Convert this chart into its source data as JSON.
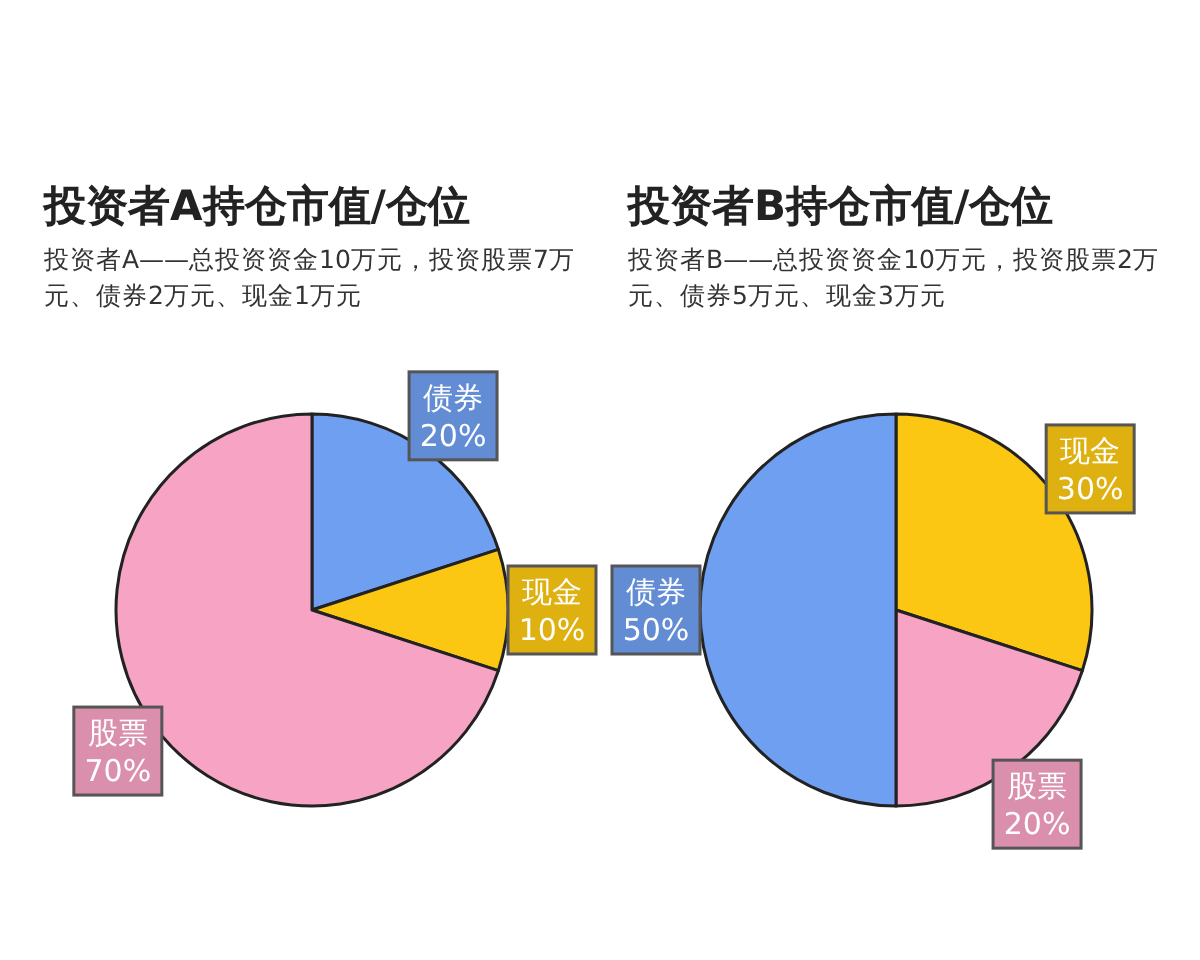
{
  "chart_data": [
    {
      "type": "pie",
      "title": "投资者A持仓市值/仓位",
      "subtitle": "投资者A——总投资资金10万元，投资股票7万元、债券2万元、现金1万元",
      "categories": [
        "债券",
        "现金",
        "股票"
      ],
      "values": [
        20,
        10,
        70
      ],
      "value_labels": [
        "20%",
        "10%",
        "70%"
      ],
      "colors": [
        "#6f9ff0",
        "#fbc712",
        "#f7a3c4"
      ]
    },
    {
      "type": "pie",
      "title": "投资者B持仓市值/仓位",
      "subtitle": "投资者B——总投资资金10万元，投资股票2万元、债券5万元、现金3万元",
      "categories": [
        "现金",
        "股票",
        "债券"
      ],
      "values": [
        30,
        20,
        50
      ],
      "value_labels": [
        "30%",
        "20%",
        "50%"
      ],
      "colors": [
        "#fbc712",
        "#f7a3c4",
        "#6f9ff0"
      ]
    }
  ]
}
